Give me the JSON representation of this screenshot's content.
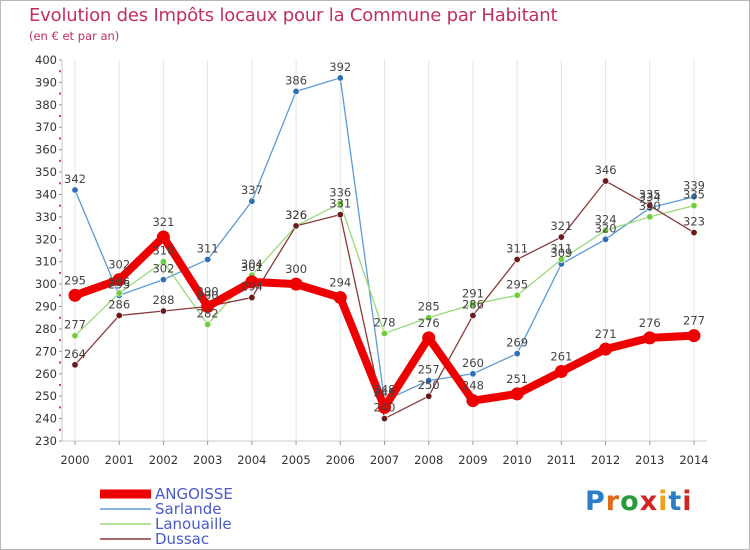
{
  "title": "Evolution des Impôts locaux pour la Commune par Habitant",
  "subtitle": "(en € et par an)",
  "brand": {
    "text": "Proxiti",
    "letter_colors": [
      "#2a7fc8",
      "#e06a1c",
      "#2a9b3a",
      "#d0261f",
      "#f0a21c",
      "#2a7fc8",
      "#d0261f"
    ]
  },
  "chart_data": {
    "type": "line",
    "title": "Evolution des Impôts locaux pour la Commune par Habitant",
    "subtitle": "(en € et par an)",
    "xlabel": "",
    "ylabel": "",
    "x": [
      "2000",
      "2001",
      "2002",
      "2003",
      "2004",
      "2005",
      "2006",
      "2007",
      "2008",
      "2009",
      "2010",
      "2011",
      "2012",
      "2013",
      "2014"
    ],
    "ylim": [
      230,
      400
    ],
    "yticks": [
      230,
      240,
      250,
      260,
      270,
      280,
      290,
      300,
      310,
      320,
      330,
      340,
      350,
      360,
      370,
      380,
      390,
      400
    ],
    "grid": "vertical",
    "legend_position": "bottom-left",
    "series": [
      {
        "name": "Sarlande",
        "color": "#5b9bd5",
        "marker_color": "#2f6fb5",
        "values": [
          342,
          295,
          302,
          311,
          337,
          386,
          392,
          248,
          257,
          260,
          269,
          309,
          320,
          334,
          339
        ]
      },
      {
        "name": "Lanouaille",
        "color": "#9bd97a",
        "marker_color": "#6fcf3a",
        "values": [
          277,
          296,
          310,
          282,
          304,
          326,
          336,
          278,
          285,
          291,
          295,
          311,
          324,
          330,
          335
        ]
      },
      {
        "name": "Dussac",
        "color": "#8a3a3a",
        "marker_color": "#6a1a1a",
        "values": [
          264,
          286,
          288,
          290,
          294,
          326,
          331,
          240,
          250,
          286,
          311,
          321,
          346,
          335,
          323
        ]
      },
      {
        "name": "ANGOISSE",
        "color": "#ee0000",
        "marker_color": "#ee0000",
        "values": [
          295,
          302,
          321,
          290,
          301,
          300,
          294,
          245,
          276,
          248,
          251,
          261,
          271,
          276,
          277
        ]
      }
    ],
    "legend": [
      "ANGOISSE",
      "Sarlande",
      "Lanouaille",
      "Dussac"
    ]
  }
}
